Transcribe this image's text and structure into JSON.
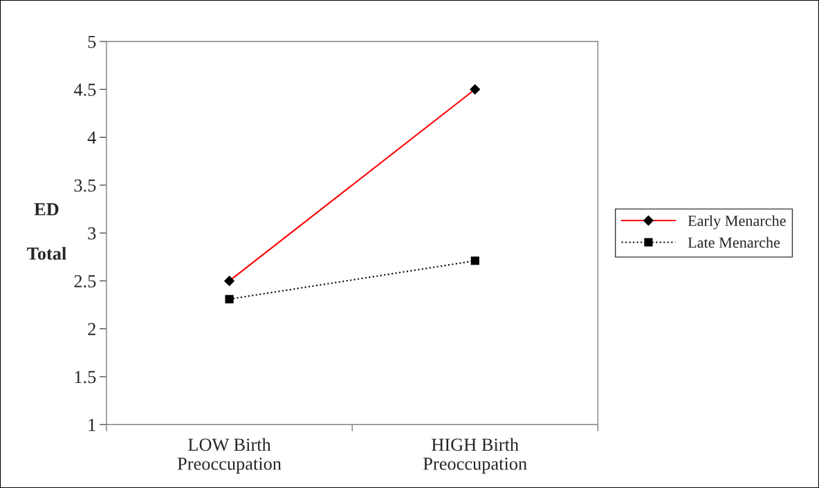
{
  "chart_data": {
    "type": "line",
    "ylabel": "ED\nTotal",
    "categories": [
      "LOW Birth\nPreoccupation",
      "HIGH Birth\nPreoccupation"
    ],
    "series": [
      {
        "name": "Early Menarche",
        "color": "#ff0000",
        "values": [
          2.5,
          4.5
        ],
        "marker": "diamond",
        "line_style": "solid"
      },
      {
        "name": "Late Menarche",
        "color": "#000000",
        "values": [
          2.31,
          2.71
        ],
        "marker": "square",
        "line_style": "dotted"
      }
    ],
    "ylim": [
      1,
      5
    ],
    "yticks": [
      1,
      1.5,
      2,
      2.5,
      3,
      3.5,
      4,
      4.5,
      5
    ],
    "grid": false,
    "legend": "right"
  }
}
